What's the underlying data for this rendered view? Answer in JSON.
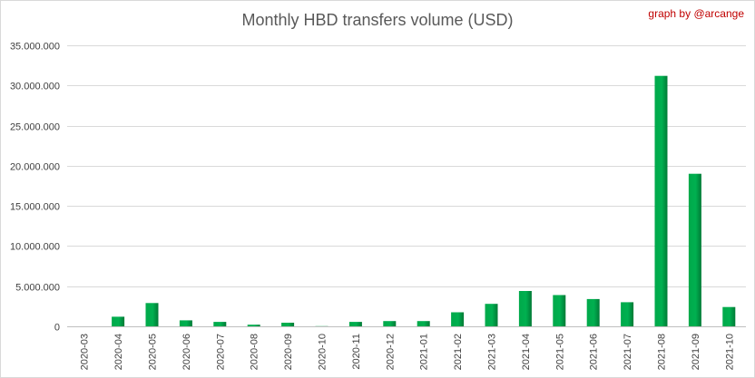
{
  "chart_data": {
    "type": "bar",
    "title": "Monthly HBD transfers volume (USD)",
    "credit": "graph by @arcange",
    "xlabel": "",
    "ylabel": "",
    "ylim": [
      0,
      35000000
    ],
    "yticks": [
      0,
      5000000,
      10000000,
      15000000,
      20000000,
      25000000,
      30000000,
      35000000
    ],
    "ytick_labels": [
      "0",
      "5.000.000",
      "10.000.000",
      "15.000.000",
      "20.000.000",
      "25.000.000",
      "30.000.000",
      "35.000.000"
    ],
    "grid": true,
    "legend": "none",
    "bar_color": "#00b050",
    "categories": [
      "2020-03",
      "2020-04",
      "2020-05",
      "2020-06",
      "2020-07",
      "2020-08",
      "2020-09",
      "2020-10",
      "2020-11",
      "2020-12",
      "2021-01",
      "2021-02",
      "2021-03",
      "2021-04",
      "2021-05",
      "2021-06",
      "2021-07",
      "2021-08",
      "2021-09",
      "2021-10"
    ],
    "values": [
      0,
      1200000,
      2900000,
      750000,
      550000,
      200000,
      450000,
      20000,
      550000,
      650000,
      650000,
      1750000,
      2800000,
      4400000,
      3900000,
      3400000,
      3000000,
      31200000,
      19000000,
      2400000
    ]
  }
}
